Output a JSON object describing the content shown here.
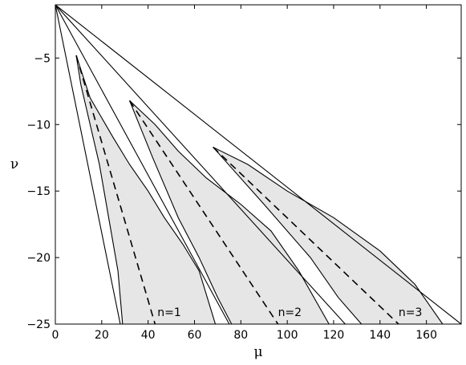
{
  "chart_data": {
    "type": "line",
    "xlabel": "μ",
    "ylabel": "ν",
    "xlim": [
      0,
      175
    ],
    "ylim": [
      -25,
      -1
    ],
    "x_ticks": [
      0,
      20,
      40,
      60,
      80,
      100,
      120,
      140,
      160
    ],
    "x_tick_labels": [
      "0",
      "20",
      "40",
      "60",
      "80",
      "100",
      "120",
      "140",
      "160"
    ],
    "y_ticks": [
      -25,
      -20,
      -15,
      -10,
      -5
    ],
    "y_tick_labels": [
      "−25",
      "−20",
      "−15",
      "−10",
      "−5"
    ],
    "grid": false,
    "colors": {
      "line": "#000000",
      "band_fill": "#e6e6e6",
      "frame": "#000000"
    },
    "series": [
      {
        "style": "solid",
        "points": [
          [
            0,
            -1
          ],
          [
            28,
            -25
          ]
        ]
      },
      {
        "style": "solid",
        "points": [
          [
            0,
            -1
          ],
          [
            75,
            -25
          ]
        ]
      },
      {
        "style": "solid",
        "points": [
          [
            0,
            -1
          ],
          [
            125,
            -25
          ]
        ]
      },
      {
        "style": "solid",
        "points": [
          [
            0,
            -1
          ],
          [
            175,
            -25
          ]
        ]
      }
    ],
    "bands": [
      {
        "tip": [
          9,
          -4.8
        ],
        "left_boundary": [
          [
            9,
            -4.8
          ],
          [
            11,
            -7
          ],
          [
            15,
            -10
          ],
          [
            19,
            -13
          ],
          [
            22,
            -16
          ],
          [
            25,
            -19
          ],
          [
            27,
            -21
          ],
          [
            29,
            -25
          ]
        ],
        "right_boundary": [
          [
            9,
            -4.8
          ],
          [
            15,
            -8
          ],
          [
            25,
            -11
          ],
          [
            32,
            -13
          ],
          [
            40,
            -15
          ],
          [
            47,
            -17
          ],
          [
            55,
            -19
          ],
          [
            62,
            -21
          ],
          [
            69,
            -25
          ]
        ],
        "center_dashed": [
          [
            9,
            -4.8
          ],
          [
            43,
            -25
          ]
        ],
        "label": "n=1",
        "label_pos": [
          44,
          -24.4
        ]
      },
      {
        "tip": [
          32,
          -8.2
        ],
        "left_boundary": [
          [
            32,
            -8.2
          ],
          [
            42,
            -12.5
          ],
          [
            53,
            -17
          ],
          [
            62,
            -20
          ],
          [
            70,
            -23
          ],
          [
            76,
            -25
          ]
        ],
        "right_boundary": [
          [
            32,
            -8.2
          ],
          [
            43,
            -10
          ],
          [
            53,
            -12
          ],
          [
            65,
            -14
          ],
          [
            80,
            -16
          ],
          [
            93,
            -18
          ],
          [
            105,
            -21
          ],
          [
            118,
            -25
          ]
        ],
        "center_dashed": [
          [
            32,
            -8.2
          ],
          [
            96,
            -25
          ]
        ],
        "label": "n=2",
        "label_pos": [
          96,
          -24.4
        ]
      },
      {
        "tip": [
          68,
          -11.7
        ],
        "left_boundary": [
          [
            68,
            -11.7
          ],
          [
            90,
            -16
          ],
          [
            110,
            -20
          ],
          [
            122,
            -23
          ],
          [
            132,
            -25
          ]
        ],
        "right_boundary": [
          [
            68,
            -11.7
          ],
          [
            83,
            -13
          ],
          [
            100,
            -15
          ],
          [
            120,
            -17
          ],
          [
            140,
            -19.5
          ],
          [
            155,
            -22
          ],
          [
            167,
            -25
          ]
        ],
        "center_dashed": [
          [
            68,
            -11.7
          ],
          [
            148,
            -25
          ]
        ],
        "label": "n=3",
        "label_pos": [
          148,
          -24.4
        ]
      }
    ]
  }
}
